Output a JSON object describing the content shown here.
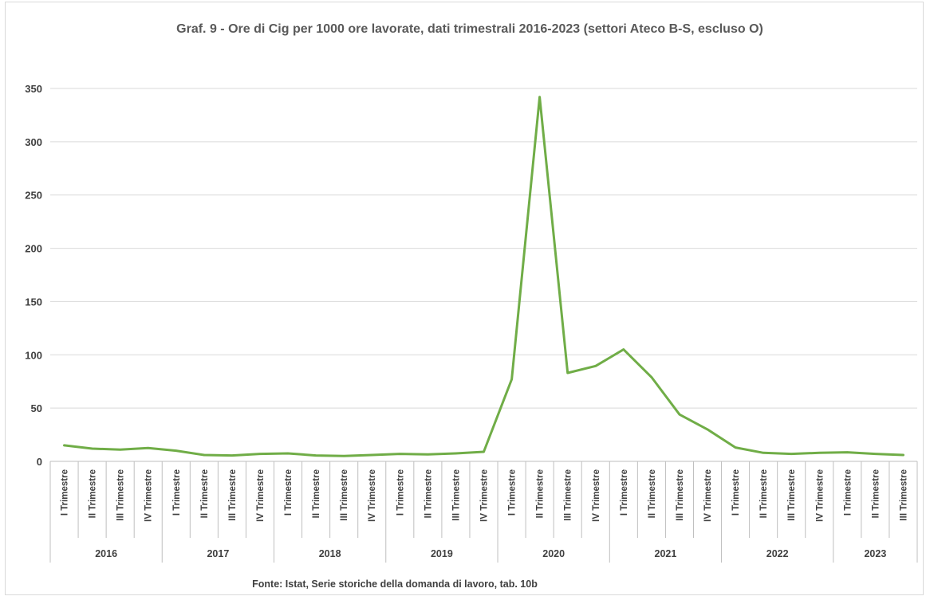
{
  "chart_data": {
    "type": "line",
    "title": "Graf. 9 - Ore di Cig per 1000 ore lavorate, dati trimestrali 2016-2023 (settori Ateco B-S, escluso O)",
    "source": "Fonte: Istat, Serie storiche della domanda di lavoro, tab. 10b",
    "ylim": [
      0,
      350
    ],
    "yticks": [
      0,
      50,
      100,
      150,
      200,
      250,
      300,
      350
    ],
    "grid": true,
    "line_color": "#70ad47",
    "years": [
      {
        "label": "2016",
        "quarters": [
          "I Trimestre",
          "II Trimestre",
          "III Trimestre",
          "IV Trimestre"
        ]
      },
      {
        "label": "2017",
        "quarters": [
          "I Trimestre",
          "II Trimestre",
          "III Trimestre",
          "IV Trimestre"
        ]
      },
      {
        "label": "2018",
        "quarters": [
          "I Trimestre",
          "II Trimestre",
          "III Trimestre",
          "IV Trimestre"
        ]
      },
      {
        "label": "2019",
        "quarters": [
          "I Trimestre",
          "II Trimestre",
          "III Trimestre",
          "IV Trimestre"
        ]
      },
      {
        "label": "2020",
        "quarters": [
          "I Trimestre",
          "II Trimestre",
          "III Trimestre",
          "IV Trimestre"
        ]
      },
      {
        "label": "2021",
        "quarters": [
          "I Trimestre",
          "II Trimestre",
          "III Trimestre",
          "IV Trimestre"
        ]
      },
      {
        "label": "2022",
        "quarters": [
          "I Trimestre",
          "II Trimestre",
          "III Trimestre",
          "IV Trimestre"
        ]
      },
      {
        "label": "2023",
        "quarters": [
          "I Trimestre",
          "II Trimestre",
          "III Trimestre"
        ]
      }
    ],
    "values": [
      15,
      12,
      11,
      12.5,
      10,
      6,
      5.5,
      7,
      7.5,
      5.5,
      5,
      6,
      7,
      6.5,
      7.5,
      9,
      77,
      342,
      83,
      89.5,
      105,
      79,
      44,
      30,
      13,
      8,
      7,
      8,
      8.5,
      7,
      6
    ]
  }
}
